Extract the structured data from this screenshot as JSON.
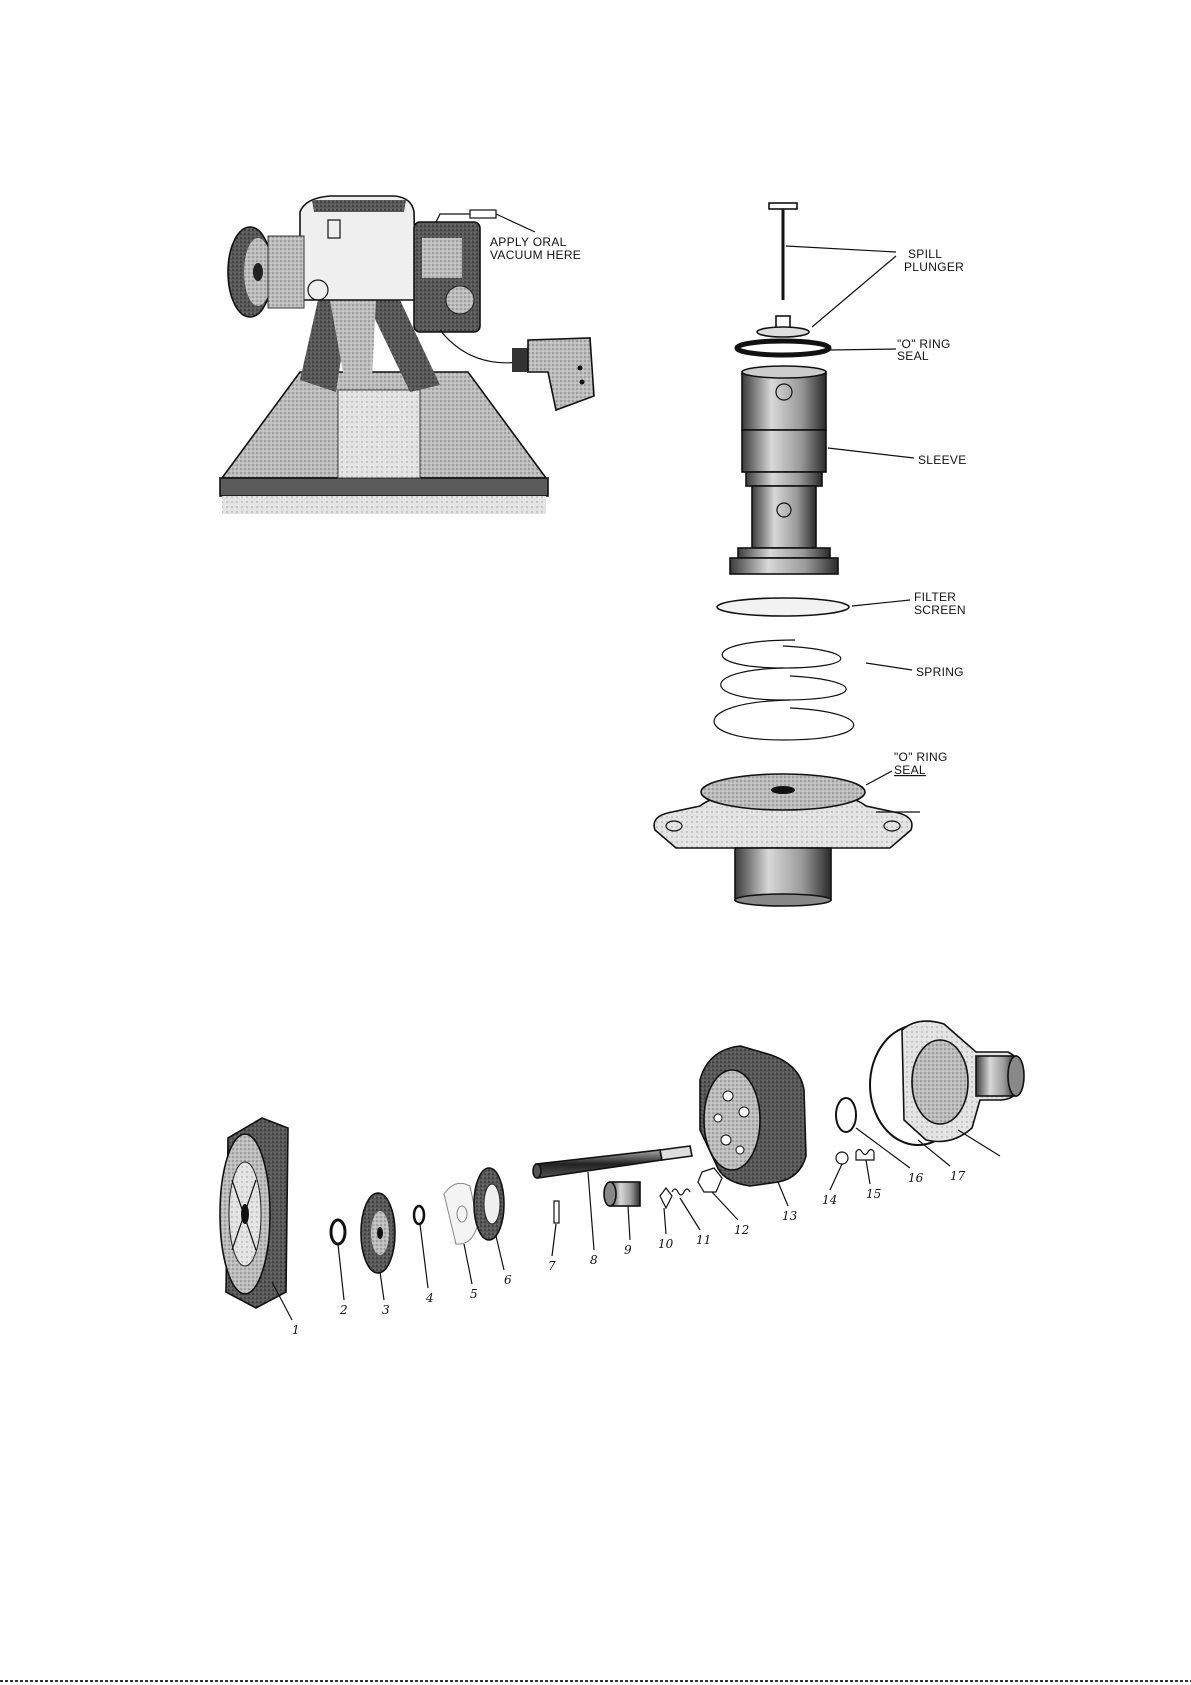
{
  "engine_figure": {
    "callout": [
      "APPLY ORAL",
      "VACUUM HERE"
    ]
  },
  "spill_valve_figure": {
    "labels": {
      "spill_plunger": [
        "SPILL",
        "PLUNGER"
      ],
      "o_ring_seal_top": [
        "\"O\" RING",
        "SEAL"
      ],
      "sleeve": "SLEEVE",
      "filter_screen": [
        "FILTER",
        "SCREEN"
      ],
      "spring": "SPRING",
      "o_ring_seal_bottom": [
        "\"O\" RING",
        "SEAL"
      ]
    }
  },
  "exploded_parts_figure": {
    "part_numbers": [
      "1",
      "2",
      "3",
      "4",
      "5",
      "6",
      "7",
      "8",
      "9",
      "10",
      "11",
      "12",
      "13",
      "14",
      "15",
      "16",
      "17"
    ]
  }
}
